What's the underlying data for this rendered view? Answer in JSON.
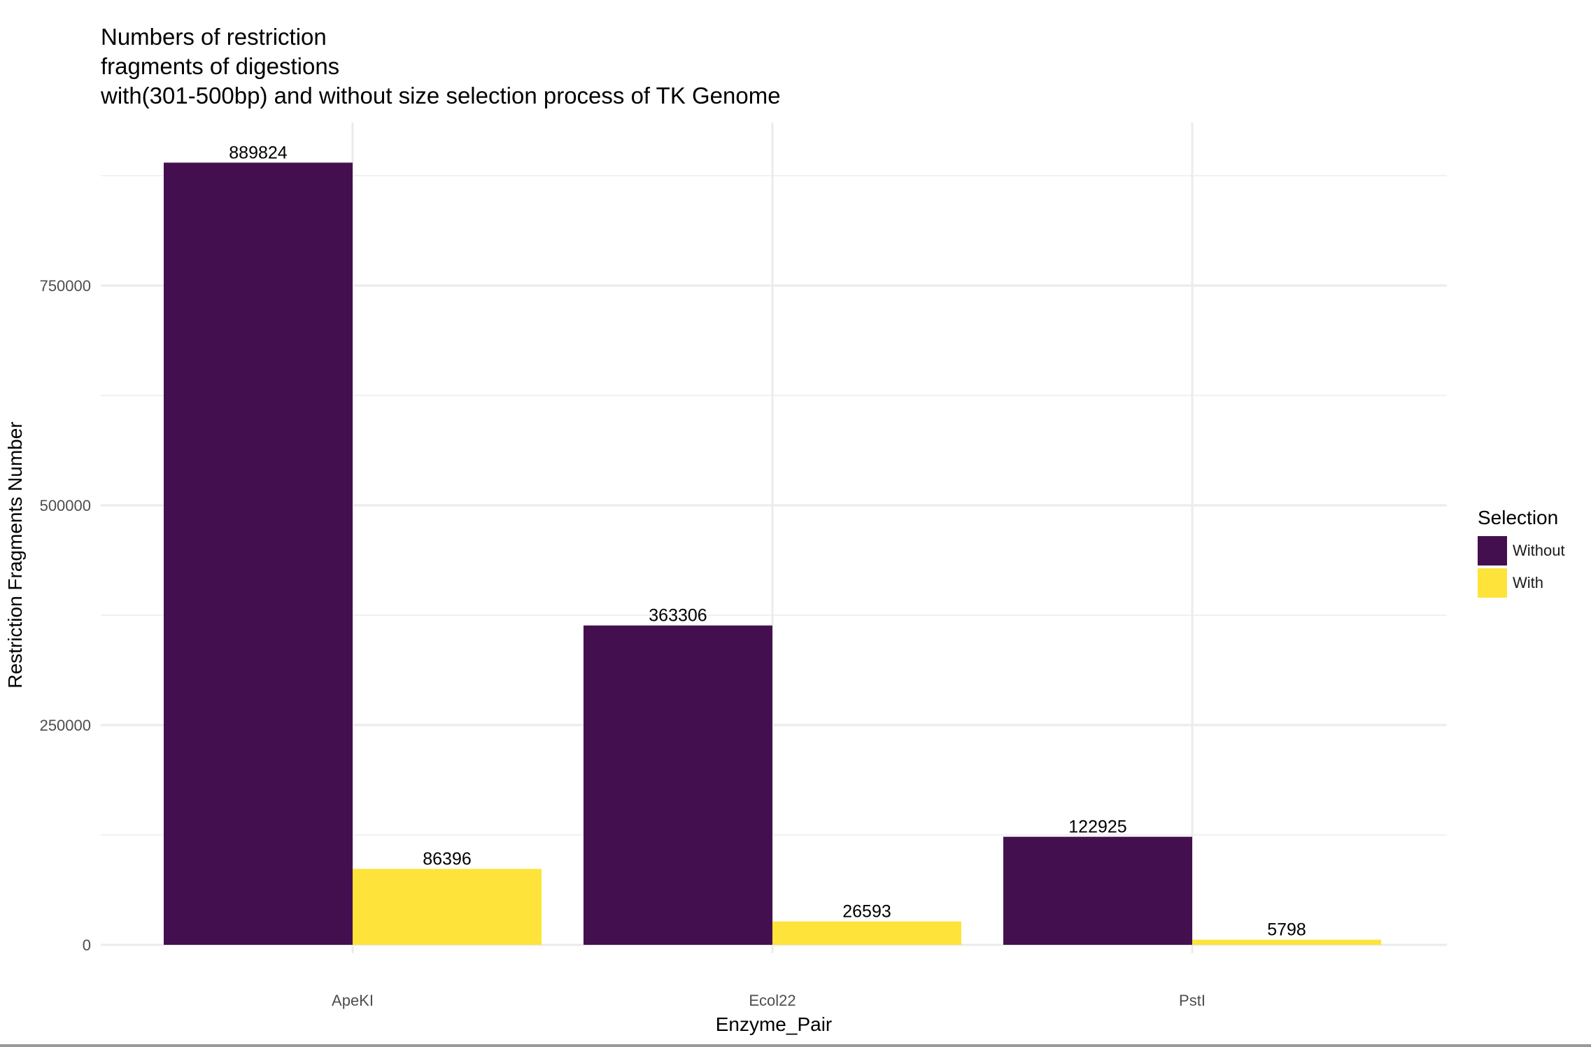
{
  "chart_data": {
    "type": "bar",
    "title_lines": [
      "Numbers of restriction",
      "fragments of digestions",
      "with(301-500bp) and without size selection process of TK Genome"
    ],
    "xlabel": "Enzyme_Pair",
    "ylabel": "Restriction Fragments Number",
    "categories": [
      "ApeKI",
      "Ecol22",
      "PstI"
    ],
    "series": [
      {
        "name": "Without",
        "color": "#440F4E",
        "values": [
          889824,
          363306,
          122925
        ]
      },
      {
        "name": "With",
        "color": "#FDE33A",
        "values": [
          86396,
          26593,
          5798
        ]
      }
    ],
    "yticks": [
      0,
      250000,
      500000,
      750000
    ],
    "ylim": [
      0,
      930000
    ],
    "grid": true,
    "legend": {
      "title": "Selection",
      "position": "right"
    }
  }
}
